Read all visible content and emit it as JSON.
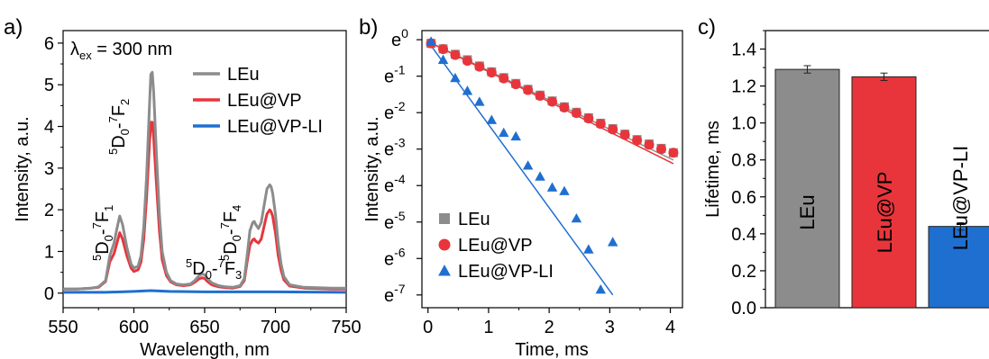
{
  "chart_data": [
    {
      "panel": "a)",
      "type": "line",
      "xlabel": "Wavelength, nm",
      "ylabel": "Intensity, a.u.",
      "xlim": [
        550,
        750
      ],
      "ylim": [
        -0.35,
        6.3
      ],
      "xticks": [
        550,
        600,
        650,
        700,
        750
      ],
      "yticks": [
        0,
        1,
        2,
        3,
        4,
        5,
        6
      ],
      "excitation_label": {
        "lambda": "λ",
        "sub": "ex",
        "rest": " = 300 nm"
      },
      "legend_position": "upper-right",
      "peak_labels": [
        {
          "sup1": "5",
          "d": "D",
          "sub1": "0",
          "dash": "-",
          "sup2": "7",
          "f": "F",
          "sub2": "1",
          "x": 588,
          "y": 1.9
        },
        {
          "sup1": "5",
          "d": "D",
          "sub1": "0",
          "dash": "-",
          "sup2": "7",
          "f": "F",
          "sub2": "2",
          "x": 612,
          "y": 5.25
        },
        {
          "sup1": "5",
          "d": "D",
          "sub1": "0",
          "dash": "-",
          "sup2": "7",
          "f": "F",
          "sub2": "3",
          "x": 650,
          "y": 0.55
        },
        {
          "sup1": "5",
          "d": "D",
          "sub1": "0",
          "dash": "-",
          "sup2": "7",
          "f": "F",
          "sub2": "4",
          "x": 692,
          "y": 2.6
        }
      ],
      "series": [
        {
          "name": "LEu",
          "color": "#8c8c8c",
          "x": [
            550,
            560,
            570,
            575,
            580,
            583,
            586,
            588,
            590,
            592,
            595,
            598,
            600,
            603,
            605,
            607,
            609,
            611,
            612,
            613,
            614,
            616,
            618,
            620,
            623,
            626,
            630,
            635,
            640,
            643,
            646,
            648,
            650,
            652,
            655,
            660,
            665,
            670,
            675,
            678,
            680,
            682,
            684,
            685,
            686,
            688,
            690,
            692,
            694,
            696,
            697,
            698,
            700,
            702,
            704,
            706,
            710,
            720,
            730,
            740,
            750
          ],
          "y": [
            0.1,
            0.1,
            0.12,
            0.15,
            0.3,
            0.9,
            1.2,
            1.55,
            1.85,
            1.65,
            1.1,
            0.7,
            0.6,
            0.65,
            0.9,
            1.6,
            2.8,
            4.5,
            5.25,
            5.3,
            4.8,
            3.3,
            1.9,
            1.0,
            0.5,
            0.3,
            0.22,
            0.2,
            0.22,
            0.3,
            0.42,
            0.46,
            0.44,
            0.35,
            0.25,
            0.18,
            0.15,
            0.14,
            0.18,
            0.35,
            0.9,
            1.5,
            1.7,
            1.72,
            1.65,
            1.55,
            1.7,
            2.1,
            2.5,
            2.6,
            2.55,
            2.4,
            1.9,
            1.2,
            0.7,
            0.4,
            0.2,
            0.14,
            0.13,
            0.12,
            0.12
          ]
        },
        {
          "name": "LEu@VP",
          "color": "#e8353b",
          "x": [
            550,
            560,
            570,
            575,
            580,
            583,
            586,
            588,
            590,
            592,
            595,
            598,
            600,
            603,
            605,
            607,
            609,
            611,
            612,
            613,
            614,
            616,
            618,
            620,
            623,
            626,
            630,
            635,
            640,
            643,
            646,
            648,
            650,
            652,
            655,
            660,
            665,
            670,
            675,
            678,
            680,
            682,
            684,
            685,
            686,
            688,
            690,
            692,
            694,
            696,
            697,
            698,
            700,
            702,
            704,
            706,
            710,
            720,
            730,
            740,
            750
          ],
          "y": [
            0.1,
            0.1,
            0.12,
            0.14,
            0.28,
            0.75,
            0.95,
            1.2,
            1.45,
            1.3,
            0.9,
            0.6,
            0.52,
            0.56,
            0.75,
            1.3,
            2.3,
            3.6,
            4.1,
            4.1,
            3.7,
            2.6,
            1.5,
            0.8,
            0.42,
            0.27,
            0.2,
            0.18,
            0.2,
            0.26,
            0.34,
            0.37,
            0.35,
            0.28,
            0.2,
            0.15,
            0.13,
            0.12,
            0.16,
            0.3,
            0.75,
            1.15,
            1.28,
            1.3,
            1.25,
            1.2,
            1.3,
            1.6,
            1.9,
            2.0,
            1.95,
            1.85,
            1.45,
            0.9,
            0.55,
            0.32,
            0.17,
            0.12,
            0.11,
            0.1,
            0.1
          ]
        },
        {
          "name": "LEu@VP-LI",
          "color": "#1f6fd1",
          "x": [
            550,
            580,
            600,
            612,
            625,
            650,
            700,
            750
          ],
          "y": [
            0.02,
            0.02,
            0.04,
            0.06,
            0.04,
            0.03,
            0.03,
            0.02
          ]
        }
      ]
    },
    {
      "panel": "b)",
      "type": "scatter",
      "xlabel": "Time, ms",
      "ylabel": "Intensity, a.u.",
      "xlim": [
        -0.1,
        4.2
      ],
      "ylim": [
        -7.35,
        0.25
      ],
      "y_scale": "ln",
      "xticks": [
        0,
        1,
        2,
        3,
        4
      ],
      "ytick_labels": [
        {
          "base": "e",
          "exp": "0",
          "v": 0
        },
        {
          "base": "e",
          "exp": "-1",
          "v": -1
        },
        {
          "base": "e",
          "exp": "-2",
          "v": -2
        },
        {
          "base": "e",
          "exp": "-3",
          "v": -3
        },
        {
          "base": "e",
          "exp": "-4",
          "v": -4
        },
        {
          "base": "e",
          "exp": "-5",
          "v": -5
        },
        {
          "base": "e",
          "exp": "-6",
          "v": -6
        },
        {
          "base": "e",
          "exp": "-7",
          "v": -7
        }
      ],
      "legend_position": "lower-left",
      "series": [
        {
          "name": "LEu",
          "color": "#8c8c8c",
          "marker": "square",
          "x": [
            0.05,
            0.25,
            0.45,
            0.65,
            0.85,
            1.05,
            1.25,
            1.45,
            1.65,
            1.85,
            2.05,
            2.25,
            2.45,
            2.65,
            2.85,
            3.05,
            3.25,
            3.45,
            3.65,
            3.85,
            4.05
          ],
          "y": [
            -0.1,
            -0.25,
            -0.4,
            -0.55,
            -0.72,
            -0.88,
            -1.04,
            -1.2,
            -1.36,
            -1.52,
            -1.68,
            -1.84,
            -1.99,
            -2.14,
            -2.29,
            -2.44,
            -2.59,
            -2.74,
            -2.86,
            -2.98,
            -3.1
          ],
          "fit": [
            [
              0.0,
              -0.05
            ],
            [
              4.05,
              -3.3
            ]
          ]
        },
        {
          "name": "LEu@VP",
          "color": "#e8353b",
          "marker": "circle",
          "x": [
            0.05,
            0.25,
            0.45,
            0.65,
            0.85,
            1.05,
            1.25,
            1.45,
            1.65,
            1.85,
            2.05,
            2.25,
            2.45,
            2.65,
            2.85,
            3.05,
            3.25,
            3.45,
            3.65,
            3.85,
            4.05
          ],
          "y": [
            -0.1,
            -0.26,
            -0.42,
            -0.58,
            -0.74,
            -0.9,
            -1.06,
            -1.22,
            -1.38,
            -1.54,
            -1.7,
            -1.86,
            -2.01,
            -2.16,
            -2.31,
            -2.46,
            -2.61,
            -2.76,
            -2.88,
            -3.0,
            -3.1
          ],
          "fit": [
            [
              0.0,
              -0.05
            ],
            [
              4.05,
              -3.4
            ]
          ]
        },
        {
          "name": "LEu@VP-LI",
          "color": "#1f6fd1",
          "marker": "triangle",
          "x": [
            0.05,
            0.25,
            0.45,
            0.65,
            0.85,
            1.05,
            1.25,
            1.45,
            1.65,
            1.85,
            2.05,
            2.25,
            2.45,
            2.65,
            2.85,
            3.05
          ],
          "y": [
            -0.05,
            -0.55,
            -1.05,
            -1.4,
            -1.7,
            -2.2,
            -2.55,
            -2.65,
            -3.45,
            -3.75,
            -4.05,
            -4.15,
            -4.9,
            -5.75,
            -6.85,
            -5.55
          ],
          "fit": [
            [
              0.0,
              -0.05
            ],
            [
              3.05,
              -7.0
            ]
          ]
        }
      ]
    },
    {
      "panel": "c)",
      "type": "bar",
      "ylabel": "Lifetime, ms",
      "ylim": [
        0,
        1.5
      ],
      "yticks": [
        0.0,
        0.2,
        0.4,
        0.6,
        0.8,
        1.0,
        1.2,
        1.4
      ],
      "categories": [
        "LEu",
        "LEu@VP",
        "LEu@VP-LI"
      ],
      "values": [
        1.29,
        1.25,
        0.44
      ],
      "errors": [
        0.02,
        0.02,
        0.02
      ],
      "colors": [
        "#8c8c8c",
        "#e8353b",
        "#1f6fd1"
      ]
    }
  ]
}
